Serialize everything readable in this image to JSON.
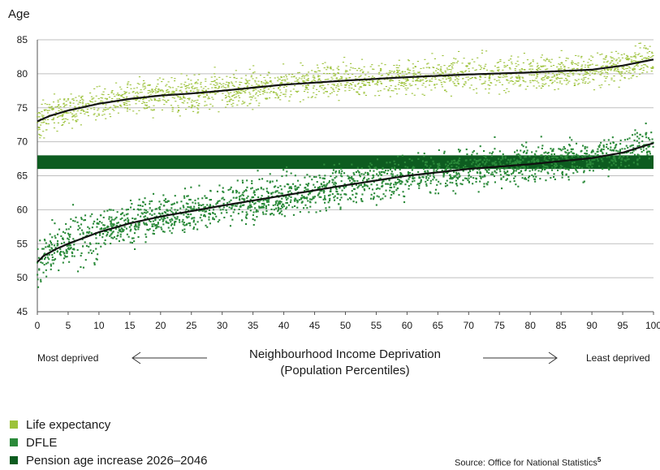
{
  "chart_data": {
    "type": "scatter",
    "ylabel": "Age",
    "xlabel_line1": "Neighbourhood Income Deprivation",
    "xlabel_line2": "(Population Percentiles)",
    "left_label": "Most deprived",
    "right_label": "Least deprived",
    "xlim": [
      0,
      100
    ],
    "ylim": [
      45,
      85
    ],
    "x_ticks": [
      "0",
      "5",
      "10",
      "15",
      "20",
      "25",
      "30",
      "35",
      "40",
      "45",
      "50",
      "55",
      "60",
      "65",
      "70",
      "75",
      "80",
      "85",
      "90",
      "95",
      "100"
    ],
    "y_ticks": [
      "45",
      "50",
      "55",
      "60",
      "65",
      "70",
      "75",
      "80",
      "85"
    ],
    "grid": "horizontal",
    "series": [
      {
        "name": "Life expectancy",
        "color": "#9cc23a",
        "trend": {
          "x": [
            0,
            2,
            5,
            10,
            15,
            20,
            25,
            30,
            40,
            50,
            60,
            70,
            80,
            90,
            95,
            100
          ],
          "y": [
            73,
            73.8,
            74.6,
            75.6,
            76.3,
            76.8,
            77.1,
            77.5,
            78.4,
            79.0,
            79.5,
            79.9,
            80.2,
            80.6,
            81.2,
            82.1
          ]
        },
        "spread": 2.2
      },
      {
        "name": "DFLE",
        "color": "#2b8a3a",
        "trend": {
          "x": [
            0,
            1,
            3,
            5,
            10,
            15,
            20,
            25,
            30,
            40,
            50,
            60,
            70,
            80,
            90,
            95,
            100
          ],
          "y": [
            52.3,
            53.2,
            54.2,
            55.0,
            56.7,
            58.0,
            59.0,
            59.8,
            60.6,
            62.1,
            63.6,
            65.0,
            66.0,
            66.7,
            67.6,
            68.4,
            69.8
          ]
        },
        "spread": 2.6
      },
      {
        "name": "Pension age increase 2026–2046",
        "color": "#0d5c20",
        "band": {
          "x": [
            0,
            100
          ],
          "y": [
            66,
            68
          ]
        }
      }
    ]
  },
  "source": {
    "text": "Source: Office for National Statistics",
    "note": "5"
  }
}
